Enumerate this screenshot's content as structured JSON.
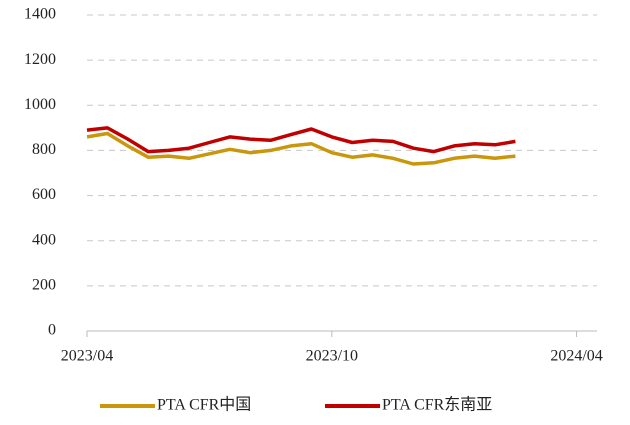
{
  "chart_data": {
    "type": "line",
    "x": [
      0,
      0.5,
      1,
      1.5,
      2,
      2.5,
      3,
      3.5,
      4,
      4.5,
      5,
      5.5,
      6,
      6.5,
      7,
      7.5,
      8,
      8.5,
      9,
      9.5,
      10,
      10.5
    ],
    "series": [
      {
        "name": "PTA CFR中国",
        "color": "#c9960c",
        "values": [
          860,
          875,
          820,
          770,
          775,
          765,
          785,
          805,
          790,
          800,
          820,
          830,
          790,
          770,
          780,
          765,
          740,
          745,
          765,
          775,
          765,
          775
        ]
      },
      {
        "name": "PTA CFR东南亚",
        "color": "#c00000",
        "values": [
          890,
          900,
          850,
          795,
          800,
          810,
          835,
          860,
          850,
          845,
          870,
          895,
          860,
          835,
          845,
          840,
          810,
          795,
          820,
          830,
          825,
          840
        ]
      }
    ],
    "xlim": [
      0,
      12.5
    ],
    "xticks": [
      {
        "value": 0,
        "label": "2023/04"
      },
      {
        "value": 6,
        "label": "2023/10"
      },
      {
        "value": 12,
        "label": "2024/04"
      }
    ],
    "ylim": [
      0,
      1400
    ],
    "yticks": [
      0,
      200,
      400,
      600,
      800,
      1000,
      1200,
      1400
    ],
    "grid": true,
    "legend": "bottom"
  }
}
